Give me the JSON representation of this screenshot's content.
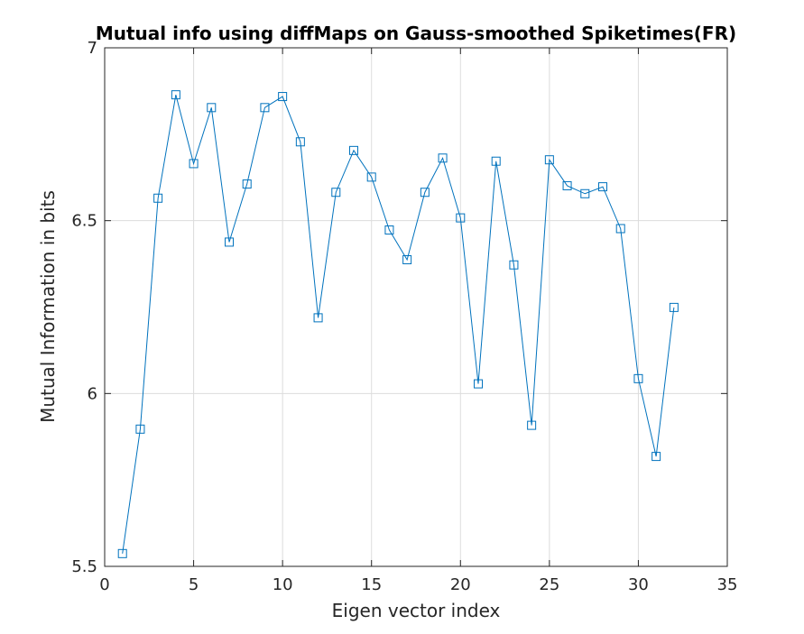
{
  "chart_data": {
    "type": "line",
    "title": "Mutual info using diffMaps on Gauss-smoothed Spiketimes(FR)",
    "xlabel": "Eigen vector index",
    "ylabel": "Mutual Information in bits",
    "xlim": [
      0,
      35
    ],
    "ylim": [
      5.5,
      7
    ],
    "xticks": [
      "0",
      "5",
      "10",
      "15",
      "20",
      "25",
      "30",
      "35"
    ],
    "yticks": [
      "5.5",
      "6",
      "6.5",
      "7"
    ],
    "grid": true,
    "marker": "square",
    "line_color": "#0072BD",
    "series": [
      {
        "x": [
          1,
          2,
          3,
          4,
          5,
          6,
          7,
          8,
          9,
          10,
          11,
          12,
          13,
          14,
          15,
          16,
          17,
          18,
          19,
          20,
          21,
          22,
          23,
          24,
          25,
          26,
          27,
          28,
          29,
          30,
          31,
          32
        ],
        "values": [
          5.537,
          5.897,
          6.565,
          6.864,
          6.665,
          6.827,
          6.438,
          6.606,
          6.827,
          6.859,
          6.728,
          6.219,
          6.582,
          6.703,
          6.626,
          6.473,
          6.387,
          6.582,
          6.681,
          6.508,
          6.028,
          6.672,
          6.372,
          5.908,
          6.676,
          6.601,
          6.578,
          6.598,
          6.477,
          6.043,
          5.818,
          6.249
        ]
      }
    ]
  }
}
